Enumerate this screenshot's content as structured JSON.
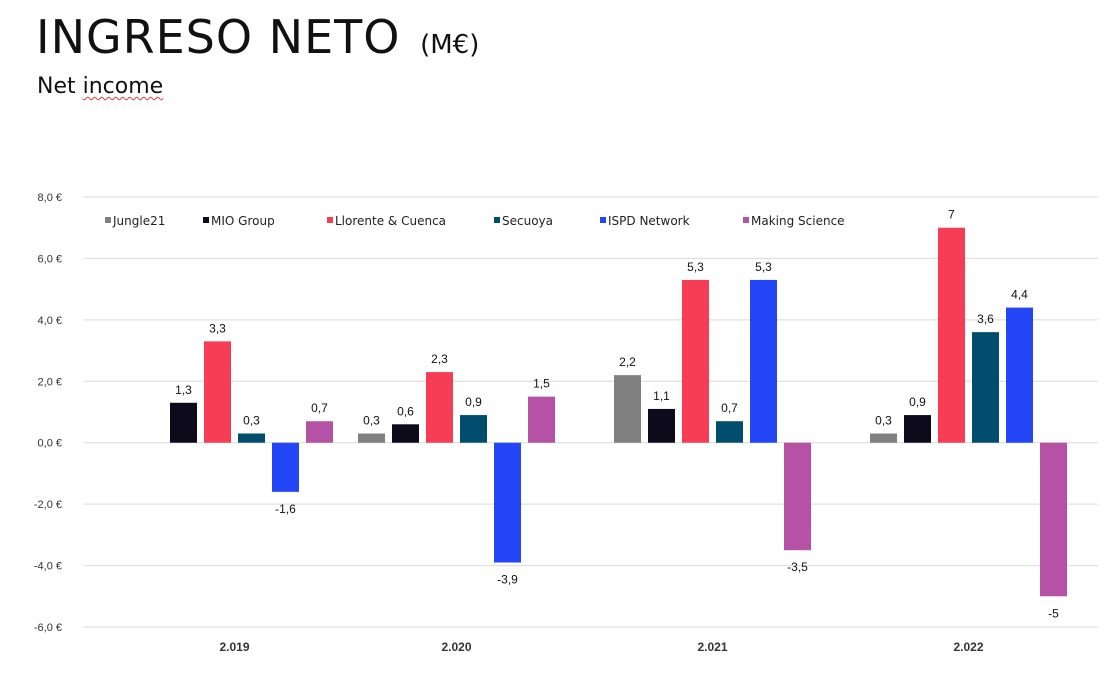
{
  "header": {
    "title_main": "INGRESO NETO",
    "title_unit": "(M€)",
    "subtitle_word1": "Net",
    "subtitle_word2": "income"
  },
  "chart_data": {
    "type": "bar",
    "title": "INGRESO NETO (M€)",
    "subtitle": "Net income",
    "xlabel": "",
    "ylabel": "",
    "ylim": [
      -6,
      8
    ],
    "yticks": [
      8,
      6,
      4,
      2,
      0,
      -2,
      -4,
      -6
    ],
    "ytick_labels": [
      "8,0 €",
      "6,0 €",
      "4,0 €",
      "2,0 €",
      "0,0 €",
      "-2,0 €",
      "-4,0 €",
      "-6,0 €"
    ],
    "grid": true,
    "legend_position": "top",
    "categories": [
      "2.019",
      "2.020",
      "2.021",
      "2.022"
    ],
    "series": [
      {
        "name": "Jungle21",
        "color": "#808080",
        "values": [
          null,
          0.3,
          2.2,
          0.3
        ],
        "labels": [
          "",
          "0,3",
          "2,2",
          "0,3"
        ]
      },
      {
        "name": "MIO Group",
        "color": "#0d0a1c",
        "values": [
          1.3,
          0.6,
          1.1,
          0.9
        ],
        "labels": [
          "1,3",
          "0,6",
          "1,1",
          "0,9"
        ]
      },
      {
        "name": "Llorente & Cuenca",
        "color": "#f73c55",
        "values": [
          3.3,
          2.3,
          5.3,
          7
        ],
        "labels": [
          "3,3",
          "2,3",
          "5,3",
          "7"
        ]
      },
      {
        "name": "Secuoya",
        "color": "#004d6e",
        "values": [
          0.3,
          0.9,
          0.7,
          3.6
        ],
        "labels": [
          "0,3",
          "0,9",
          "0,7",
          "3,6"
        ]
      },
      {
        "name": "ISPD Network",
        "color": "#2346f7",
        "values": [
          -1.6,
          -3.9,
          5.3,
          4.4
        ],
        "labels": [
          "-1,6",
          "-3,9",
          "5,3",
          "4,4"
        ]
      },
      {
        "name": "Making Science",
        "color": "#b552a6",
        "values": [
          0.7,
          1.5,
          -3.5,
          -5
        ],
        "labels": [
          "0,7",
          "1,5",
          "-3,5",
          "-5"
        ]
      }
    ]
  }
}
